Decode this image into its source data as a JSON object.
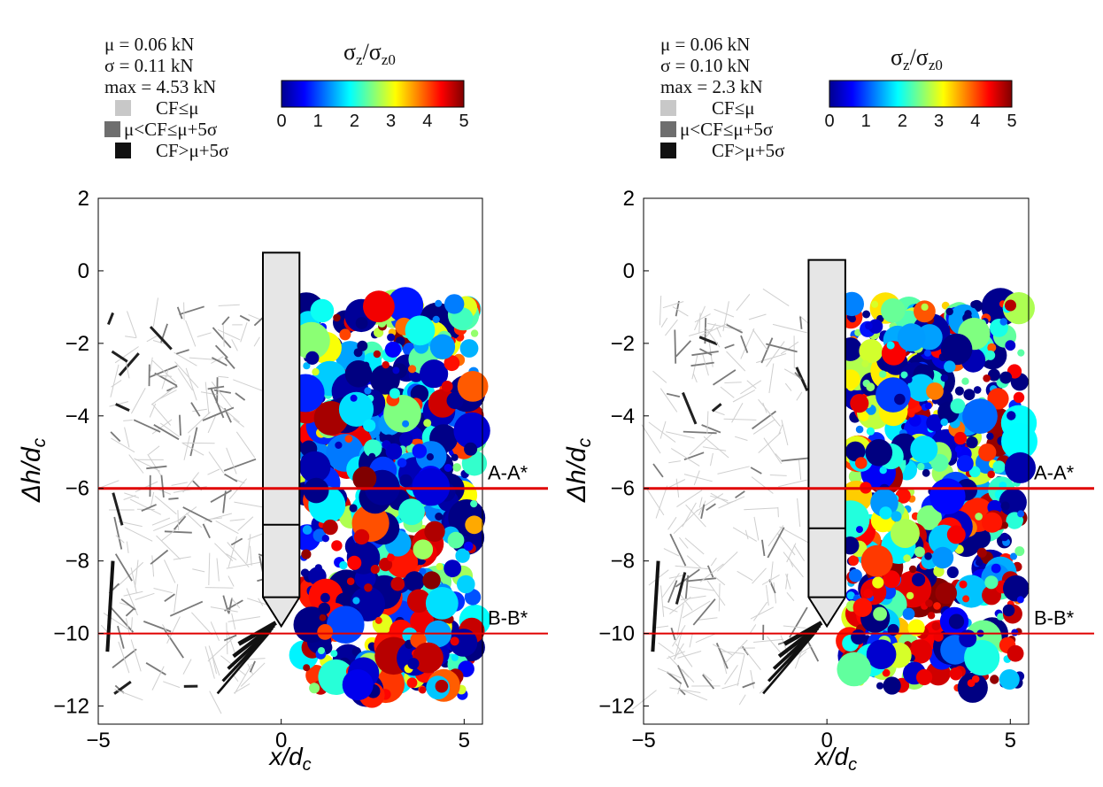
{
  "chart_data": [
    {
      "type": "scatter",
      "panel": "left",
      "stats": [
        "μ = 0.06 kN",
        "σ = 0.11 kN",
        "max = 4.53 kN"
      ],
      "force_legend": [
        {
          "label": "CF≤μ",
          "color": "#c8c8c8"
        },
        {
          "label": "μ<CF≤μ+5σ",
          "color": "#6e6e6e"
        },
        {
          "label": "CF>μ+5σ",
          "color": "#111111"
        }
      ],
      "colorbar": {
        "title_main": "σ",
        "title_sub": "z",
        "title_sep": "/σ",
        "title_sub2": "z0",
        "range": [
          0,
          5
        ],
        "ticks": [
          "0",
          "1",
          "2",
          "3",
          "4",
          "5"
        ]
      },
      "xlabel": "x/d",
      "xlabel_sub": "c",
      "ylabel": "Δh/d",
      "ylabel_sub": "c",
      "xlim": [
        -5,
        5.5
      ],
      "ylim": [
        -12.5,
        2
      ],
      "xticks": [
        "−5",
        "0",
        "5"
      ],
      "yticks": [
        "2",
        "0",
        "−2",
        "−4",
        "−6",
        "−8",
        "−10",
        "−12"
      ],
      "sections": [
        {
          "label": "A-A*",
          "y": -6
        },
        {
          "label": "B-B*",
          "y": -10
        }
      ],
      "cone": {
        "x_half_width": 0.5,
        "top": 0.5,
        "joint": -7,
        "shoulder": -9,
        "tip": -9.8
      },
      "particles_x_range": [
        0.6,
        5.3
      ],
      "particles_y_range": [
        -11.7,
        -0.9
      ],
      "grid": false
    },
    {
      "type": "scatter",
      "panel": "right",
      "stats": [
        "μ = 0.06 kN",
        "σ = 0.10 kN",
        "max = 2.3 kN"
      ],
      "force_legend": [
        {
          "label": "CF≤μ",
          "color": "#c8c8c8"
        },
        {
          "label": "μ<CF≤μ+5σ",
          "color": "#6e6e6e"
        },
        {
          "label": "CF>μ+5σ",
          "color": "#111111"
        }
      ],
      "colorbar": {
        "title_main": "σ",
        "title_sub": "z",
        "title_sep": "/σ",
        "title_sub2": "z0",
        "range": [
          0,
          5
        ],
        "ticks": [
          "0",
          "1",
          "2",
          "3",
          "4",
          "5"
        ]
      },
      "xlabel": "x/d",
      "xlabel_sub": "c",
      "ylabel": "Δh/d",
      "ylabel_sub": "c",
      "xlim": [
        -5,
        5.5
      ],
      "ylim": [
        -12.5,
        2
      ],
      "xticks": [
        "−5",
        "0",
        "5"
      ],
      "yticks": [
        "2",
        "0",
        "−2",
        "−4",
        "−6",
        "−8",
        "−10",
        "−12"
      ],
      "sections": [
        {
          "label": "A-A*",
          "y": -6
        },
        {
          "label": "B-B*",
          "y": -10
        }
      ],
      "cone": {
        "x_half_width": 0.5,
        "top": 0.3,
        "joint": -7.1,
        "shoulder": -9,
        "tip": -9.8
      },
      "particles_x_range": [
        0.6,
        5.3
      ],
      "particles_y_range": [
        -11.5,
        -0.9
      ],
      "grid": false
    }
  ]
}
